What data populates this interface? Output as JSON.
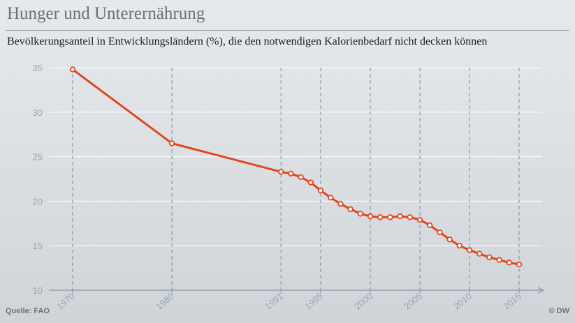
{
  "header": {
    "title": "Hunger und Unterernährung",
    "subtitle": "Bevölkerungsanteil in Entwicklungsländern (%), die den notwendigen Kalorienbedarf nicht decken können"
  },
  "footer": {
    "source": "Quelle: FAO",
    "credit": "© DW"
  },
  "colors": {
    "line": "#e0471c",
    "axis": "#8a96a3",
    "grid": "#ffffff",
    "dashed": "#7d8a97",
    "tick_text": "#9aa6b2"
  },
  "chart_data": {
    "type": "line",
    "title": "Hunger und Unterernährung",
    "subtitle": "Bevölkerungsanteil in Entwicklungsländern (%), die den notwendigen Kalorienbedarf nicht decken können",
    "xlabel": "",
    "ylabel": "",
    "ylim": [
      10,
      35
    ],
    "yticks": [
      10,
      15,
      20,
      25,
      30,
      35
    ],
    "xticks": [
      "1970",
      "1980",
      "1991",
      "1995",
      "2000",
      "2005",
      "2010",
      "2015"
    ],
    "grid": true,
    "series": [
      {
        "name": "",
        "points": [
          {
            "x": "1970",
            "y": 34.8
          },
          {
            "x": "1980",
            "y": 26.5
          },
          {
            "x": "1991",
            "y": 23.3
          },
          {
            "x": "1992",
            "y": 23.1
          },
          {
            "x": "1993",
            "y": 22.7
          },
          {
            "x": "1994",
            "y": 22.1
          },
          {
            "x": "1995",
            "y": 21.2
          },
          {
            "x": "1996",
            "y": 20.4
          },
          {
            "x": "1997",
            "y": 19.7
          },
          {
            "x": "1998",
            "y": 19.1
          },
          {
            "x": "1999",
            "y": 18.6
          },
          {
            "x": "2000",
            "y": 18.3
          },
          {
            "x": "2001",
            "y": 18.2
          },
          {
            "x": "2002",
            "y": 18.2
          },
          {
            "x": "2003",
            "y": 18.3
          },
          {
            "x": "2004",
            "y": 18.2
          },
          {
            "x": "2005",
            "y": 17.9
          },
          {
            "x": "2006",
            "y": 17.3
          },
          {
            "x": "2007",
            "y": 16.5
          },
          {
            "x": "2008",
            "y": 15.7
          },
          {
            "x": "2009",
            "y": 15.0
          },
          {
            "x": "2010",
            "y": 14.5
          },
          {
            "x": "2011",
            "y": 14.1
          },
          {
            "x": "2012",
            "y": 13.7
          },
          {
            "x": "2013",
            "y": 13.4
          },
          {
            "x": "2014",
            "y": 13.1
          },
          {
            "x": "2015",
            "y": 12.9
          }
        ]
      }
    ]
  }
}
